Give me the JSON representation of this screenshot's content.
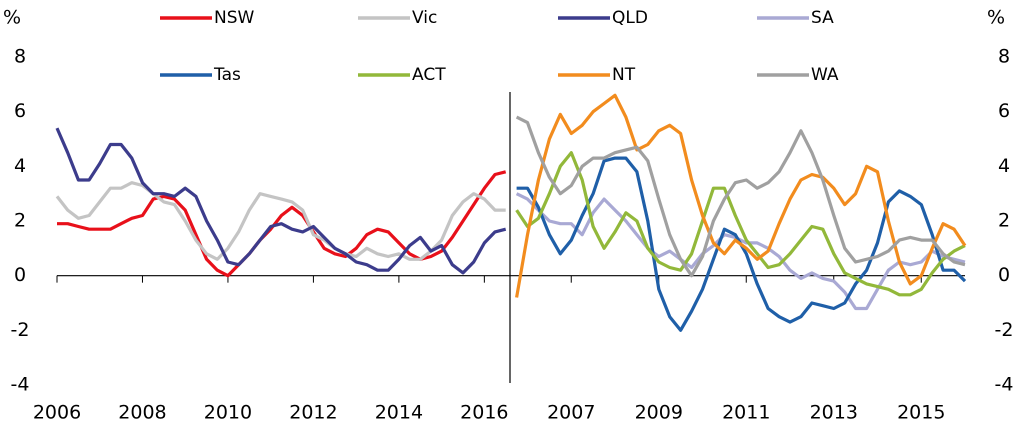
{
  "chart_data": [
    {
      "type": "line",
      "y_label": "%",
      "xlim": [
        2006,
        2016.6
      ],
      "xticks": [
        2006,
        2008,
        2010,
        2012,
        2014,
        2016
      ],
      "ylim": [
        -4,
        8
      ],
      "yticks": [
        -4,
        -2,
        0,
        2,
        4,
        6,
        8
      ],
      "x": [
        2006,
        2006.25,
        2006.5,
        2006.75,
        2007,
        2007.25,
        2007.5,
        2007.75,
        2008,
        2008.25,
        2008.5,
        2008.75,
        2009,
        2009.25,
        2009.5,
        2009.75,
        2010,
        2010.25,
        2010.5,
        2010.75,
        2011,
        2011.25,
        2011.5,
        2011.75,
        2012,
        2012.25,
        2012.5,
        2012.75,
        2013,
        2013.25,
        2013.5,
        2013.75,
        2014,
        2014.25,
        2014.5,
        2014.75,
        2015,
        2015.25,
        2015.5,
        2015.75,
        2016,
        2016.25,
        2016.5
      ],
      "series": [
        {
          "name": "NSW",
          "color": "#e8101a",
          "values": [
            1.9,
            1.9,
            1.8,
            1.7,
            1.7,
            1.7,
            1.9,
            2.1,
            2.2,
            2.8,
            2.9,
            2.8,
            2.4,
            1.5,
            0.6,
            0.2,
            0.0,
            0.4,
            0.8,
            1.3,
            1.7,
            2.2,
            2.5,
            2.2,
            1.6,
            1.0,
            0.8,
            0.7,
            1.0,
            1.5,
            1.7,
            1.6,
            1.2,
            0.8,
            0.6,
            0.7,
            0.9,
            1.4,
            2.0,
            2.6,
            3.2,
            3.7,
            3.8
          ]
        },
        {
          "name": "Vic",
          "color": "#c4c4c4",
          "values": [
            2.9,
            2.4,
            2.1,
            2.2,
            2.7,
            3.2,
            3.2,
            3.4,
            3.3,
            3.0,
            2.7,
            2.6,
            2.0,
            1.3,
            0.8,
            0.6,
            1.0,
            1.6,
            2.4,
            3.0,
            2.9,
            2.8,
            2.7,
            2.4,
            1.5,
            1.3,
            1.0,
            0.8,
            0.7,
            1.0,
            0.8,
            0.7,
            0.8,
            0.6,
            0.6,
            0.9,
            1.3,
            2.2,
            2.7,
            3.0,
            2.8,
            2.4,
            2.4
          ]
        },
        {
          "name": "QLD",
          "color": "#3c3c8c",
          "values": [
            5.4,
            4.5,
            3.5,
            3.5,
            4.1,
            4.8,
            4.8,
            4.3,
            3.4,
            3.0,
            3.0,
            2.9,
            3.2,
            2.9,
            2.0,
            1.3,
            0.5,
            0.4,
            0.8,
            1.3,
            1.8,
            1.9,
            1.7,
            1.6,
            1.8,
            1.4,
            1.0,
            0.8,
            0.5,
            0.4,
            0.2,
            0.2,
            0.6,
            1.1,
            1.4,
            0.9,
            1.1,
            0.4,
            0.1,
            0.5,
            1.2,
            1.6,
            1.7
          ]
        }
      ]
    },
    {
      "type": "line",
      "y_label": "%",
      "xlim": [
        2005.6,
        2016
      ],
      "xticks": [
        2007,
        2009,
        2011,
        2013,
        2015
      ],
      "ylim": [
        -4,
        8
      ],
      "yticks": [
        -4,
        -2,
        0,
        2,
        4,
        6,
        8
      ],
      "x": [
        2005.75,
        2006,
        2006.25,
        2006.5,
        2006.75,
        2007,
        2007.25,
        2007.5,
        2007.75,
        2008,
        2008.25,
        2008.5,
        2008.75,
        2009,
        2009.25,
        2009.5,
        2009.75,
        2010,
        2010.25,
        2010.5,
        2010.75,
        2011,
        2011.25,
        2011.5,
        2011.75,
        2012,
        2012.25,
        2012.5,
        2012.75,
        2013,
        2013.25,
        2013.5,
        2013.75,
        2014,
        2014.25,
        2014.5,
        2014.75,
        2015,
        2015.25,
        2015.5,
        2015.75,
        2016
      ],
      "series": [
        {
          "name": "SA",
          "color": "#a9a9d4",
          "values": [
            3.0,
            2.8,
            2.4,
            2.0,
            1.9,
            1.9,
            1.5,
            2.3,
            2.8,
            2.4,
            2.0,
            1.5,
            1.0,
            0.7,
            0.9,
            0.6,
            0.3,
            0.8,
            1.1,
            1.5,
            1.4,
            1.2,
            1.2,
            1.0,
            0.7,
            0.2,
            -0.1,
            0.1,
            -0.1,
            -0.2,
            -0.6,
            -1.2,
            -1.2,
            -0.5,
            0.2,
            0.5,
            0.4,
            0.5,
            0.9,
            0.7,
            0.6,
            0.5
          ]
        },
        {
          "name": "Tas",
          "color": "#1f5fa8",
          "values": [
            3.2,
            3.2,
            2.5,
            1.5,
            0.8,
            1.3,
            2.2,
            3.0,
            4.2,
            4.3,
            4.3,
            3.8,
            2.0,
            -0.5,
            -1.5,
            -2.0,
            -1.3,
            -0.5,
            0.6,
            1.7,
            1.5,
            0.8,
            -0.3,
            -1.2,
            -1.5,
            -1.7,
            -1.5,
            -1.0,
            -1.1,
            -1.2,
            -1.0,
            -0.3,
            0.2,
            1.2,
            2.7,
            3.1,
            2.9,
            2.6,
            1.5,
            0.2,
            0.2,
            -0.2
          ]
        },
        {
          "name": "ACT",
          "color": "#92b83a",
          "values": [
            2.4,
            1.8,
            2.1,
            3.0,
            4.0,
            4.5,
            3.5,
            1.8,
            1.0,
            1.6,
            2.3,
            2.0,
            1.0,
            0.5,
            0.3,
            0.2,
            0.8,
            2.0,
            3.2,
            3.2,
            2.2,
            1.3,
            0.8,
            0.3,
            0.4,
            0.8,
            1.3,
            1.8,
            1.7,
            0.8,
            0.1,
            -0.1,
            -0.3,
            -0.4,
            -0.5,
            -0.7,
            -0.7,
            -0.5,
            0.1,
            0.6,
            0.9,
            1.1
          ]
        },
        {
          "name": "NT",
          "color": "#f28c1e",
          "values": [
            -0.8,
            1.5,
            3.5,
            5.0,
            5.9,
            5.2,
            5.5,
            6.0,
            6.3,
            6.6,
            5.8,
            4.6,
            4.8,
            5.3,
            5.5,
            5.2,
            3.5,
            2.2,
            1.2,
            0.8,
            1.3,
            1.0,
            0.6,
            0.9,
            1.9,
            2.8,
            3.5,
            3.7,
            3.6,
            3.2,
            2.6,
            3.0,
            4.0,
            3.8,
            2.0,
            0.5,
            -0.3,
            0.0,
            1.0,
            1.9,
            1.7,
            1.1
          ]
        },
        {
          "name": "WA",
          "color": "#a0a0a0",
          "values": [
            5.8,
            5.6,
            4.5,
            3.6,
            3.0,
            3.3,
            4.0,
            4.3,
            4.3,
            4.5,
            4.6,
            4.7,
            4.2,
            2.8,
            1.5,
            0.6,
            0.0,
            0.7,
            2.0,
            2.8,
            3.4,
            3.5,
            3.2,
            3.4,
            3.8,
            4.5,
            5.3,
            4.5,
            3.5,
            2.2,
            1.0,
            0.5,
            0.6,
            0.7,
            0.9,
            1.3,
            1.4,
            1.3,
            1.3,
            0.8,
            0.5,
            0.4
          ]
        }
      ]
    }
  ]
}
